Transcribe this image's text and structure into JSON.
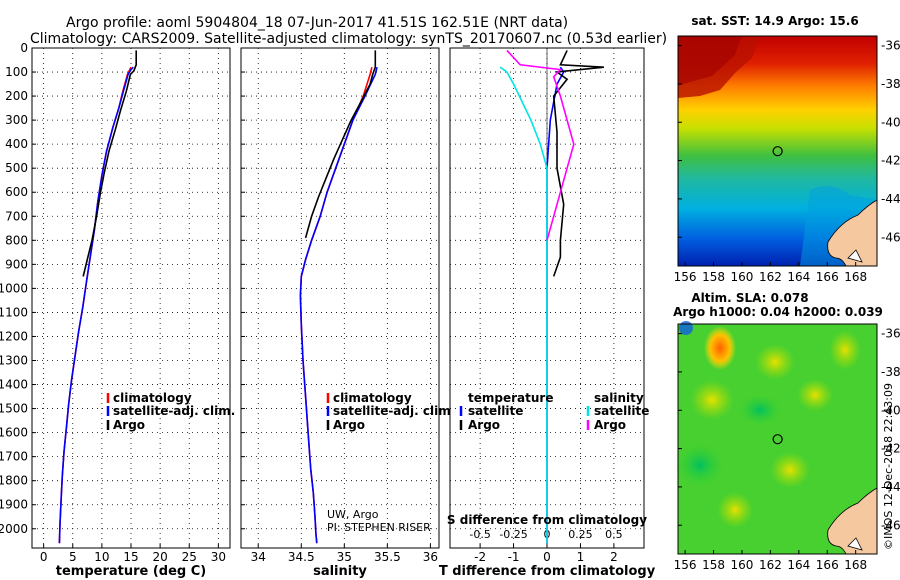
{
  "title_line1": "Argo profile: aoml 5904804_18 07-Jun-2017 41.51S 162.51E (NRT data)",
  "title_line2": "Climatology: CARS2009. Satellite-adjusted climatology: synTS_20170607.nc (0.53d earlier)",
  "colors": {
    "climatology": "#ff0000",
    "satellite": "#0000ff",
    "argo": "#000000",
    "sat_salinity": "#00e5e5",
    "argo_salinity": "#ff00ff"
  },
  "chart_data": [
    {
      "type": "line",
      "name": "temperature-profile",
      "xlabel": "temperature (deg C)",
      "ylabel": "",
      "xlim": [
        -2,
        32
      ],
      "ylim": [
        0,
        2080
      ],
      "xticks": [
        "0",
        "5",
        "10",
        "15",
        "20",
        "25",
        "30"
      ],
      "xtick_values": [
        0,
        5,
        10,
        15,
        20,
        25,
        30
      ],
      "yticks": [
        "0",
        "100",
        "200",
        "300",
        "400",
        "500",
        "600",
        "700",
        "800",
        "900",
        "1000",
        "1100",
        "1200",
        "1300",
        "1400",
        "1500",
        "1600",
        "1700",
        "1800",
        "1900",
        "2000"
      ],
      "ytick_values": [
        0,
        100,
        200,
        300,
        400,
        500,
        600,
        700,
        800,
        900,
        1000,
        1100,
        1200,
        1300,
        1400,
        1500,
        1600,
        1700,
        1800,
        1900,
        2000
      ],
      "legend": [
        "climatology",
        "satellite-adj. clim.",
        "Argo"
      ],
      "series": [
        {
          "name": "climatology",
          "x": [
            15.0,
            14.8,
            14.4,
            13.6,
            12.9,
            11.9,
            10.8,
            10.0,
            9.3,
            8.7,
            8.0,
            7.3,
            6.7,
            6.0,
            5.4,
            4.8,
            4.3,
            3.9,
            3.5,
            3.2,
            3.0,
            2.8,
            2.7
          ],
          "y": [
            80,
            90,
            110,
            180,
            250,
            330,
            430,
            530,
            640,
            760,
            870,
            980,
            1080,
            1180,
            1280,
            1380,
            1480,
            1580,
            1680,
            1780,
            1880,
            1980,
            2060
          ]
        },
        {
          "name": "satellite-adj. clim.",
          "x": [
            15.4,
            15.0,
            14.5,
            13.7,
            12.9,
            11.9,
            10.8,
            10.0,
            9.3,
            8.7,
            8.0,
            7.3,
            6.7,
            6.0,
            5.4,
            4.8,
            4.3,
            3.9,
            3.5,
            3.2,
            3.0,
            2.8,
            2.7
          ],
          "y": [
            80,
            90,
            110,
            180,
            250,
            330,
            430,
            530,
            640,
            760,
            870,
            980,
            1080,
            1180,
            1280,
            1380,
            1480,
            1580,
            1680,
            1780,
            1880,
            1980,
            2060
          ]
        },
        {
          "name": "Argo",
          "x": [
            15.9,
            15.9,
            15.5,
            14.9,
            14.2,
            13.2,
            12.3,
            11.2,
            10.4,
            9.7,
            9.1,
            8.3,
            7.5,
            6.8
          ],
          "y": [
            10,
            70,
            95,
            110,
            180,
            260,
            340,
            430,
            520,
            610,
            700,
            800,
            880,
            950
          ]
        }
      ]
    },
    {
      "type": "line",
      "name": "salinity-profile",
      "xlabel": "salinity",
      "xlim": [
        33.8,
        36.1
      ],
      "ylim": [
        0,
        2080
      ],
      "xticks": [
        "34",
        "34.5",
        "35",
        "35.5",
        "36"
      ],
      "xtick_values": [
        34,
        34.5,
        35,
        35.5,
        36
      ],
      "legend": [
        "climatology",
        "satellite-adj. clim.",
        "Argo"
      ],
      "credit_line1": "UW, Argo",
      "credit_line2": "PI: STEPHEN RISER",
      "series": [
        {
          "name": "climatology",
          "x": [
            35.32,
            35.3,
            35.22,
            35.1,
            35.0,
            34.9,
            34.8,
            34.72,
            34.62,
            34.55,
            34.5,
            34.49,
            34.5,
            34.52,
            34.55,
            34.58,
            34.61,
            34.64,
            34.66,
            34.67,
            34.68
          ],
          "y": [
            80,
            110,
            200,
            300,
            400,
            500,
            600,
            700,
            800,
            880,
            950,
            1030,
            1150,
            1300,
            1450,
            1600,
            1750,
            1850,
            1950,
            2020,
            2060
          ]
        },
        {
          "name": "satellite-adj. clim.",
          "x": [
            35.38,
            35.36,
            35.24,
            35.1,
            35.0,
            34.9,
            34.8,
            34.72,
            34.62,
            34.55,
            34.5,
            34.49,
            34.5,
            34.52,
            34.55,
            34.58,
            34.61,
            34.64,
            34.66,
            34.67,
            34.68
          ],
          "y": [
            80,
            110,
            200,
            300,
            400,
            500,
            600,
            700,
            800,
            880,
            950,
            1030,
            1150,
            1300,
            1450,
            1600,
            1750,
            1850,
            1950,
            2020,
            2060
          ]
        },
        {
          "name": "Argo",
          "x": [
            35.36,
            35.36,
            35.33,
            35.3,
            35.2,
            35.08,
            34.98,
            34.88,
            34.79,
            34.7,
            34.62,
            34.55
          ],
          "y": [
            10,
            80,
            110,
            150,
            220,
            300,
            380,
            460,
            540,
            620,
            700,
            790
          ]
        }
      ]
    },
    {
      "type": "line",
      "name": "difference-profile",
      "xlabel": "T difference from climatology",
      "top_xlabel": "S difference from climatology",
      "xlim": [
        -2.9,
        2.9
      ],
      "ylim": [
        0,
        2080
      ],
      "xticks": [
        "-2",
        "-1",
        "0",
        "1",
        "2"
      ],
      "xtick_values": [
        -2,
        -1,
        0,
        1,
        2
      ],
      "sticks": [
        "-0.5",
        "-0.25",
        "0",
        "0.25",
        "0.5"
      ],
      "stick_values": [
        -0.5,
        -0.25,
        0,
        0.25,
        0.5
      ],
      "legend_left": [
        "temperature",
        "satellite",
        "Argo"
      ],
      "legend_right": [
        "salinity",
        "satellite",
        "Argo"
      ],
      "series": [
        {
          "name": "T satellite",
          "x": [
            0.4,
            0.5,
            0.3,
            0.1,
            0.0,
            0.0,
            0.0,
            0.0,
            0.0,
            0.0
          ],
          "y": [
            80,
            100,
            150,
            300,
            500,
            800,
            1100,
            1400,
            1700,
            2060
          ]
        },
        {
          "name": "T Argo",
          "x": [
            0.6,
            0.4,
            1.7,
            0.3,
            0.6,
            0.2,
            0.3,
            0.3,
            0.5,
            0.4,
            0.4,
            0.2
          ],
          "y": [
            10,
            70,
            80,
            100,
            130,
            200,
            350,
            500,
            650,
            800,
            870,
            950
          ]
        },
        {
          "name": "S satellite",
          "x": [
            -0.35,
            -0.3,
            -0.25,
            -0.12,
            -0.05,
            0.0,
            0.0,
            0.0,
            0.0,
            0.0,
            0.0
          ],
          "y": [
            80,
            100,
            150,
            300,
            400,
            500,
            800,
            1100,
            1400,
            1700,
            2060
          ]
        },
        {
          "name": "S Argo",
          "x": [
            -0.3,
            -0.2,
            0.1,
            0.05,
            0.1,
            0.15,
            0.2,
            0.15,
            0.1,
            0.05,
            0.0
          ],
          "y": [
            10,
            70,
            90,
            120,
            200,
            300,
            400,
            500,
            600,
            700,
            800
          ]
        }
      ]
    },
    {
      "type": "heatmap",
      "name": "sst-map",
      "title": "sat. SST: 14.9 Argo: 15.6",
      "xlim": [
        155.5,
        169.5
      ],
      "ylim": [
        -47.5,
        -35.5
      ],
      "xticks": [
        "156",
        "158",
        "160",
        "162",
        "164",
        "166",
        "168"
      ],
      "xtick_values": [
        156,
        158,
        160,
        162,
        164,
        166,
        168
      ],
      "yticks": [
        "-36",
        "-38",
        "-40",
        "-42",
        "-44",
        "-46"
      ],
      "ytick_values": [
        -36,
        -38,
        -40,
        -42,
        -44,
        -46
      ],
      "marker": {
        "lon": 162.51,
        "lat": -41.51
      }
    },
    {
      "type": "heatmap",
      "name": "sla-map",
      "title1": "Altim. SLA: 0.078",
      "title2": "Argo h1000: 0.04 h2000: 0.039",
      "xlim": [
        155.5,
        169.5
      ],
      "ylim": [
        -47.5,
        -35.5
      ],
      "xticks": [
        "156",
        "158",
        "160",
        "162",
        "164",
        "166",
        "168"
      ],
      "xtick_values": [
        156,
        158,
        160,
        162,
        164,
        166,
        168
      ],
      "yticks": [
        "-36",
        "-38",
        "-40",
        "-42",
        "-44",
        "-46"
      ],
      "ytick_values": [
        -36,
        -38,
        -40,
        -42,
        -44,
        -46
      ],
      "marker": {
        "lon": 162.51,
        "lat": -41.51
      }
    }
  ],
  "watermark": "©IMOS 12-Dec-2018 22:43:09"
}
